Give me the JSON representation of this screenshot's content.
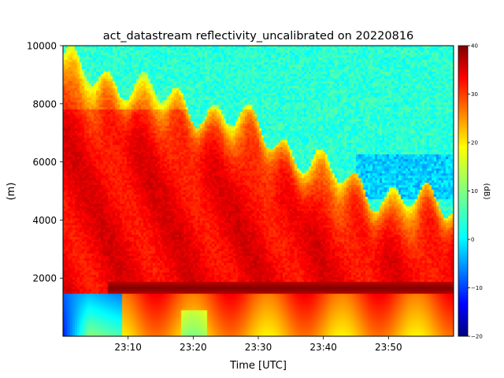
{
  "chart_data": {
    "type": "heatmap",
    "title": "act_datastream reflectivity_uncalibrated on 20220816",
    "xlabel": "Time [UTC]",
    "ylabel": "(m)",
    "colorbar_label": "(dB)",
    "colormap": "jet",
    "x_range_minutes": [
      0,
      60
    ],
    "x_ticks": [
      {
        "minute": 10,
        "label": "23:10"
      },
      {
        "minute": 20,
        "label": "23:20"
      },
      {
        "minute": 30,
        "label": "23:30"
      },
      {
        "minute": 40,
        "label": "23:40"
      },
      {
        "minute": 50,
        "label": "23:50"
      }
    ],
    "ylim": [
      0,
      10000
    ],
    "y_ticks": [
      {
        "value": 2000,
        "label": "2000"
      },
      {
        "value": 4000,
        "label": "4000"
      },
      {
        "value": 6000,
        "label": "6000"
      },
      {
        "value": 8000,
        "label": "8000"
      },
      {
        "value": 10000,
        "label": "10000"
      }
    ],
    "clim": [
      -20,
      40
    ],
    "colorbar_ticks": [
      {
        "value": -20,
        "label": "−20"
      },
      {
        "value": -10,
        "label": "−10"
      },
      {
        "value": 0,
        "label": "0"
      },
      {
        "value": 10,
        "label": "10"
      },
      {
        "value": 20,
        "label": "20"
      },
      {
        "value": 30,
        "label": "30"
      },
      {
        "value": 40,
        "label": "40"
      }
    ],
    "features": {
      "cloud_top_m": [
        [
          0,
          9500
        ],
        [
          5,
          9000
        ],
        [
          10,
          8700
        ],
        [
          15,
          8300
        ],
        [
          20,
          7900
        ],
        [
          25,
          7600
        ],
        [
          30,
          7200
        ],
        [
          35,
          6400
        ],
        [
          40,
          5800
        ],
        [
          45,
          5200
        ],
        [
          50,
          4800
        ],
        [
          55,
          4650
        ],
        [
          60,
          4600
        ]
      ],
      "bright_band_height_m": 1650,
      "bright_band_start_minute": 7,
      "bright_band_dbz": 40,
      "core_dbz": 33,
      "background_dbz": 5
    }
  }
}
